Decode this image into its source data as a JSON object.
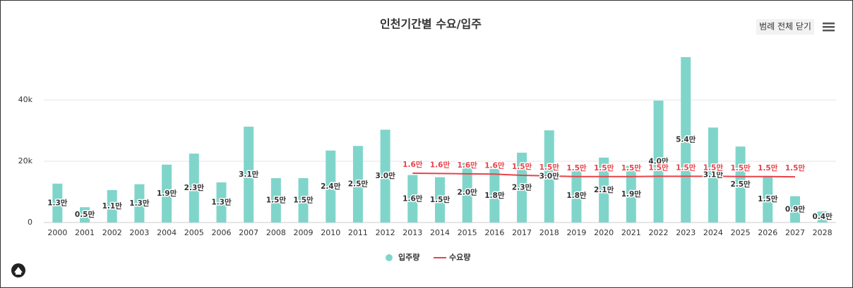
{
  "chart_data": {
    "type": "bar",
    "title": "인천기간별 수요/입주",
    "button": "범례 전체 닫기",
    "categories": [
      "2000",
      "2001",
      "2002",
      "2003",
      "2004",
      "2005",
      "2006",
      "2007",
      "2008",
      "2009",
      "2010",
      "2011",
      "2012",
      "2013",
      "2014",
      "2015",
      "2016",
      "2017",
      "2018",
      "2019",
      "2020",
      "2021",
      "2022",
      "2023",
      "2024",
      "2025",
      "2026",
      "2027",
      "2028"
    ],
    "series": [
      {
        "name": "입주량",
        "type": "bar",
        "color": "#80d5cb",
        "values": [
          12700,
          5000,
          10600,
          12500,
          18900,
          22500,
          13100,
          31300,
          14500,
          14500,
          23500,
          25000,
          30300,
          15500,
          14800,
          19500,
          17500,
          22800,
          30100,
          17500,
          21200,
          18500,
          39800,
          54000,
          31000,
          24800,
          15200,
          8600,
          3600
        ],
        "value_labels": [
          "1.3만",
          "0.5만",
          "1.1만",
          "1.3만",
          "1.9만",
          "2.3만",
          "1.3만",
          "3.1만",
          "1.5만",
          "1.5만",
          "2.4만",
          "2.5만",
          "3.0만",
          "1.6만",
          "1.5만",
          "2.0만",
          "1.8만",
          "2.3만",
          "3.0만",
          "1.8만",
          "2.1만",
          "1.9만",
          "4.0만",
          "5.4만",
          "3.1만",
          "2.5만",
          "1.5만",
          "0.9만",
          "0.4만"
        ]
      },
      {
        "name": "수요량",
        "type": "line",
        "color": "#e8424a",
        "values": [
          null,
          null,
          null,
          null,
          null,
          null,
          null,
          null,
          null,
          null,
          null,
          null,
          null,
          16100,
          16000,
          15900,
          15800,
          15400,
          15200,
          15000,
          15000,
          15000,
          15100,
          15100,
          15100,
          15000,
          15000,
          14900,
          null
        ],
        "value_labels": [
          null,
          null,
          null,
          null,
          null,
          null,
          null,
          null,
          null,
          null,
          null,
          null,
          null,
          "1.6만",
          "1.6만",
          "1.6만",
          "1.6만",
          "1.5만",
          "1.5만",
          "1.5만",
          "1.5만",
          "1.5만",
          "1.5만",
          "1.5만",
          "1.5만",
          "1.5만",
          "1.5만",
          "1.5만",
          null
        ]
      }
    ],
    "ylim": [
      0,
      60000
    ],
    "yticks": [
      0,
      {
        "value": 20000,
        "label": "20k"
      },
      {
        "value": 40000,
        "label": "40k"
      }
    ],
    "grid": true,
    "legend": "bottom"
  }
}
